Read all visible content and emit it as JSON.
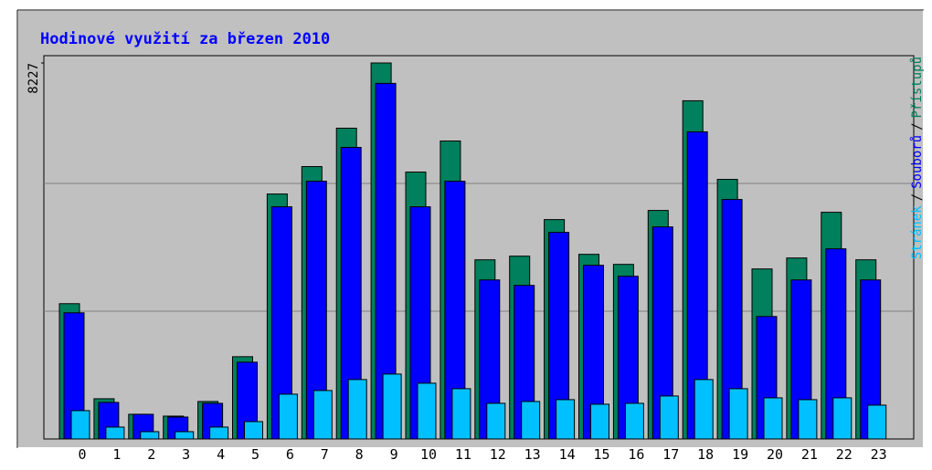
{
  "chart_data": {
    "type": "bar",
    "title": "Hodinové využití za březen 2010",
    "categories": [
      "0",
      "1",
      "2",
      "3",
      "4",
      "5",
      "6",
      "7",
      "8",
      "9",
      "10",
      "11",
      "12",
      "13",
      "14",
      "15",
      "16",
      "17",
      "18",
      "19",
      "20",
      "21",
      "22",
      "23"
    ],
    "series": [
      {
        "name": "Přístupů",
        "color": "#00805c",
        "values": [
          2960,
          880,
          540,
          500,
          820,
          1800,
          5360,
          5960,
          6800,
          8227,
          5840,
          6520,
          3920,
          4000,
          4800,
          4040,
          3820,
          5000,
          7400,
          5680,
          3720,
          3960,
          4960,
          3920
        ]
      },
      {
        "name": "Souborů",
        "color": "#0000ff",
        "values": [
          2760,
          800,
          540,
          480,
          780,
          1680,
          5080,
          5640,
          6380,
          7780,
          5080,
          5640,
          3480,
          3360,
          4520,
          3800,
          3560,
          4640,
          6720,
          5240,
          2680,
          3480,
          4160,
          3480
        ]
      },
      {
        "name": "Stránek",
        "color": "#00c0ff",
        "values": [
          620,
          260,
          160,
          160,
          260,
          380,
          980,
          1060,
          1300,
          1420,
          1220,
          1100,
          780,
          820,
          860,
          760,
          780,
          940,
          1300,
          1100,
          900,
          860,
          900,
          740
        ]
      }
    ],
    "legend_separator": "/",
    "ylim": [
      0,
      8227
    ],
    "yticks": [
      8227
    ],
    "grid": true
  }
}
